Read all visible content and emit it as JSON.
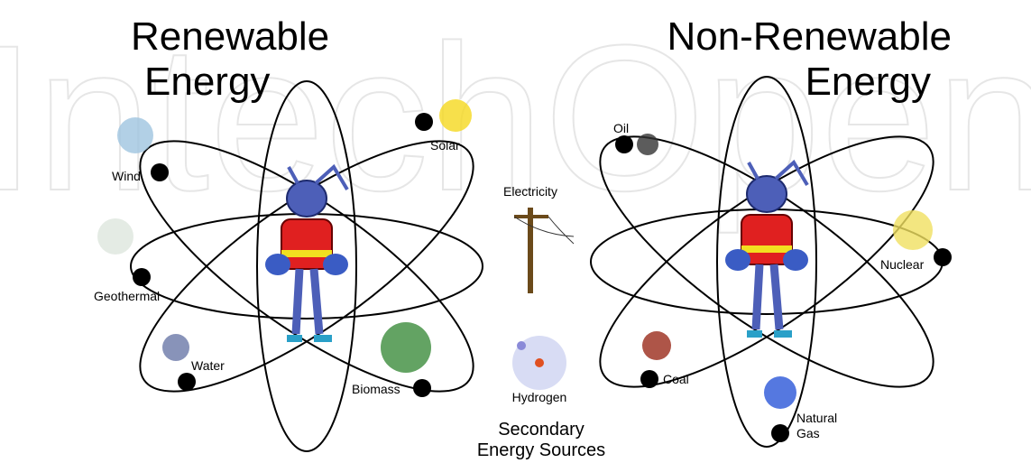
{
  "watermark": "IntechOpen",
  "renewable": {
    "title_lines": [
      "Renewable",
      "Energy"
    ],
    "sources": [
      [
        "Wind"
      ],
      [
        "Solar"
      ],
      [
        "Geothermal"
      ],
      [
        "Water"
      ],
      [
        "Biomass"
      ]
    ]
  },
  "non_renewable": {
    "title_lines": [
      "Non-Renewable",
      "Energy"
    ],
    "sources": [
      [
        "Oil"
      ],
      [
        "Nuclear"
      ],
      [
        "Coal"
      ],
      [
        "Natural",
        "Gas"
      ]
    ]
  },
  "secondary": {
    "title_lines": [
      "Secondary",
      "Energy Sources"
    ],
    "items": [
      "Electricity",
      "Hydrogen"
    ]
  }
}
